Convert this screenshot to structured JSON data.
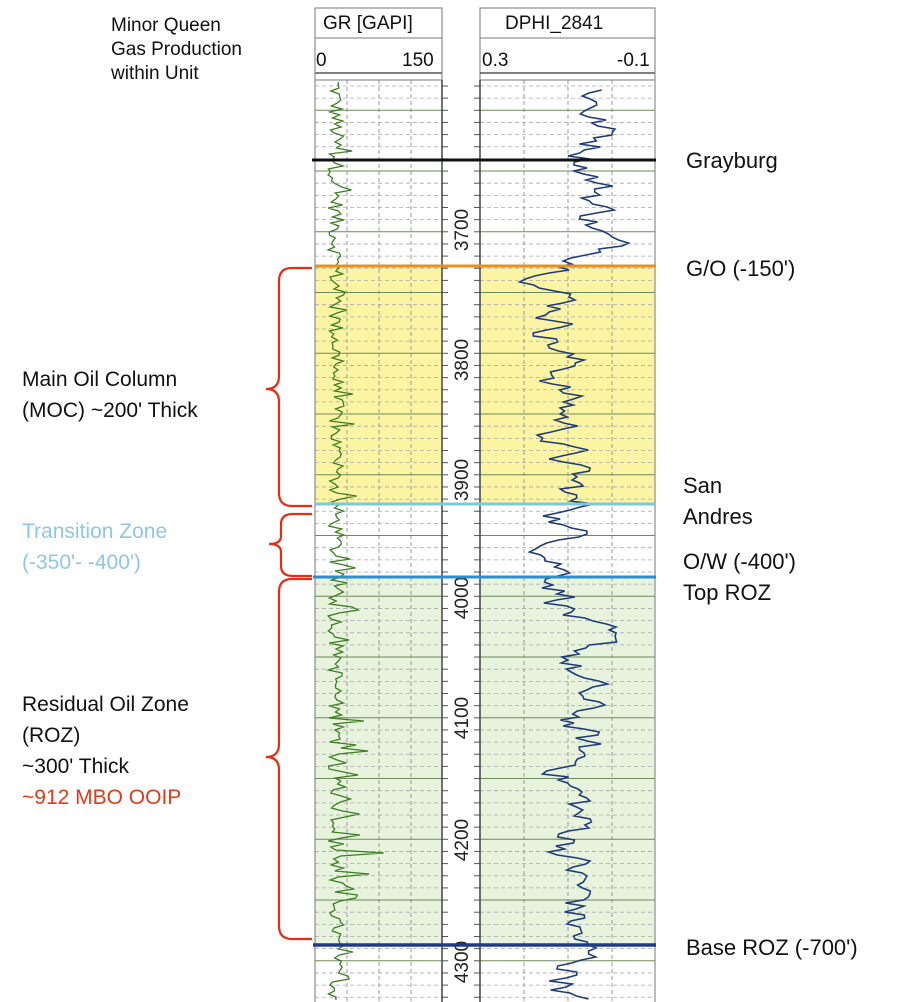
{
  "title": "Minor Queen\nGas Production\nwithin Unit",
  "tracks": {
    "gr": {
      "name": "GR [GAPI]",
      "scale_left": "0",
      "scale_right": "150",
      "color": "#3c7d22"
    },
    "dphi": {
      "name": "DPHI_2841",
      "scale_left": "0.3",
      "scale_right": "-0.1",
      "color": "#1f3c78"
    }
  },
  "depth_labels": [
    "3700",
    "3800",
    "3900",
    "4000",
    "4100",
    "4200",
    "4300"
  ],
  "zones_left": {
    "moc_line1": "Main Oil Column",
    "moc_line2": "(MOC) ~200' Thick",
    "transition_line1": "Transition Zone",
    "transition_line2": "(-350'- -400')",
    "roz_line1": "Residual Oil Zone",
    "roz_line2": "(ROZ)",
    "roz_line3": "~300' Thick",
    "roz_line4": "~912 MBO OOIP"
  },
  "markers_right": {
    "grayburg": "Grayburg",
    "go": "G/O (-150')",
    "san_andres_1": "San",
    "san_andres_2": "Andres",
    "ow": "O/W (-400')",
    "top_roz": "Top ROZ",
    "base_roz": "Base ROZ (-700')"
  },
  "colors": {
    "grayburg_line": "#111111",
    "go_line": "#e8901c",
    "san_andres_line": "#7fc6df",
    "ow_line": "#2a8fd0",
    "base_roz_line": "#1f3a8a",
    "moc_fill": "#fbf5a3",
    "roz_fill": "#e7f3dc",
    "brace": "#e52e14",
    "transition_text": "#8fc6e6",
    "ooip_text": "#e03b1d"
  }
}
